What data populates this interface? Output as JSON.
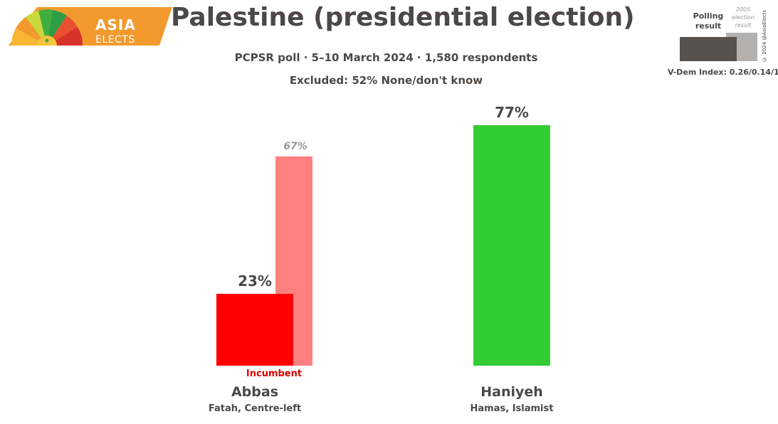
{
  "logo": {
    "line1": "ASIA",
    "line2": "ELECTS",
    "color": "#f29a2e"
  },
  "header": {
    "title": "Palestine (presidential election)",
    "subtitle": "PCPSR poll · 5–10 March 2024 · 1,580 respondents",
    "excluded": "Excluded: 52% None/don't know"
  },
  "legend": {
    "polling_label": "Polling result",
    "election_label": "2005 election result",
    "copyright": "© 2024 @AsiaElects",
    "vdem": "V-Dem Index: 0.26/0.14/1",
    "poll_color": "#57524e",
    "election_color": "#b3b0ad"
  },
  "chart_data": {
    "type": "bar",
    "title": "Palestine (presidential election)",
    "categories": [
      "Abbas",
      "Haniyeh"
    ],
    "ylim": [
      0,
      100
    ],
    "series": [
      {
        "name": "Polling result",
        "values": [
          23,
          77
        ],
        "labels": [
          "23%",
          "77%"
        ]
      },
      {
        "name": "2005 election result",
        "values": [
          67,
          null
        ],
        "labels": [
          "67%",
          ""
        ]
      }
    ],
    "parties": [
      "Fatah, Centre-left",
      "Hamas, Islamist"
    ],
    "colors": [
      "#ff0000",
      "#33cc33"
    ],
    "election_colors": [
      "#ff8080",
      ""
    ],
    "incumbent": {
      "candidate": "Abbas",
      "label": "Incumbent",
      "color": "#dd0000"
    }
  }
}
